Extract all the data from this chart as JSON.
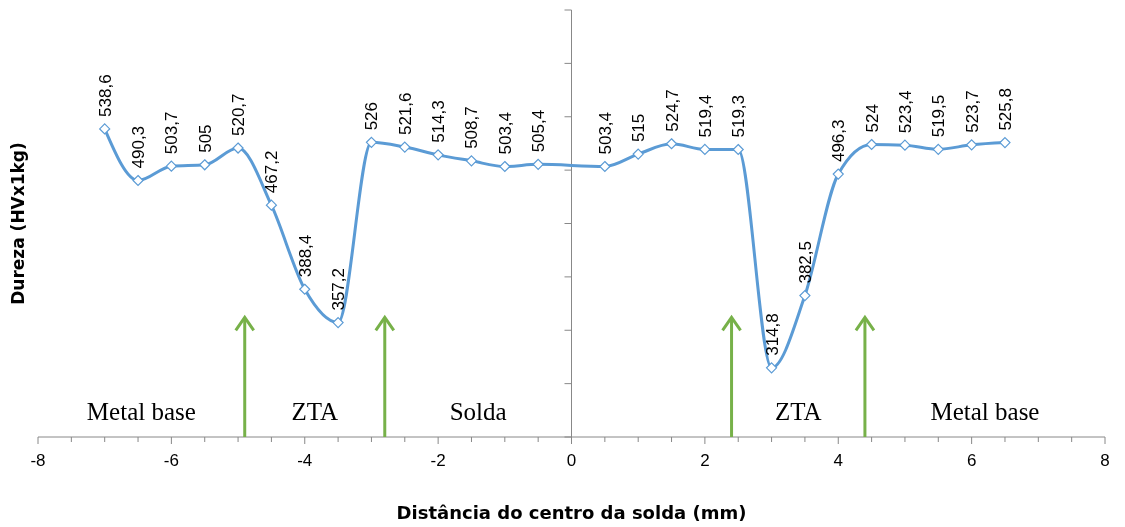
{
  "chart_data": {
    "type": "line",
    "xlabel": "Distância do centro da solda (mm)",
    "ylabel": "Dureza (HVx1kg)",
    "xlim": [
      -8,
      8
    ],
    "xticks": [
      -8,
      {
        "value": -7.5,
        "label": null
      },
      {
        "value": -7,
        "label": null
      },
      {
        "value": -6.5,
        "label": null
      },
      -6,
      {
        "value": -5.5,
        "label": null
      },
      {
        "value": -5,
        "label": null
      },
      {
        "value": -4.5,
        "label": null
      },
      -4,
      {
        "value": -3.5,
        "label": null
      },
      {
        "value": -3,
        "label": null
      },
      {
        "value": -2.5,
        "label": null
      },
      -2,
      {
        "value": -1.5,
        "label": null
      },
      {
        "value": -1,
        "label": null
      },
      {
        "value": -0.5,
        "label": null
      },
      0,
      {
        "value": 0.5,
        "label": null
      },
      {
        "value": 1,
        "label": null
      },
      {
        "value": 1.5,
        "label": null
      },
      2,
      {
        "value": 2.5,
        "label": null
      },
      {
        "value": 3,
        "label": null
      },
      {
        "value": 3.5,
        "label": null
      },
      4,
      {
        "value": 4.5,
        "label": null
      },
      {
        "value": 5,
        "label": null
      },
      {
        "value": 5.5,
        "label": null
      },
      6,
      {
        "value": 6.5,
        "label": null
      },
      {
        "value": 7,
        "label": null
      },
      {
        "value": 7.5,
        "label": null
      },
      8
    ],
    "ylim": [
      250,
      650
    ],
    "yticks": [
      {
        "value": 250,
        "label": null
      },
      {
        "value": 300,
        "label": null
      },
      {
        "value": 350,
        "label": null
      },
      {
        "value": 400,
        "label": null
      },
      {
        "value": 450,
        "label": null
      },
      {
        "value": 500,
        "label": null
      },
      {
        "value": 550,
        "label": null
      },
      {
        "value": 600,
        "label": null
      },
      {
        "value": 650,
        "label": null
      }
    ],
    "tick_labels": "x",
    "marker": "diamond",
    "line_style": "solid",
    "series": [
      {
        "color": "#5b9bd5",
        "x": [
          -7,
          -6.5,
          -6,
          -5.5,
          -5,
          -4.5,
          -4,
          -3.5,
          -3,
          -2.5,
          -2,
          -1.5,
          -1,
          -0.5,
          0.5,
          1,
          1.5,
          2,
          2.5,
          3,
          3.5,
          4,
          4.5,
          5,
          5.5,
          6,
          6.5
        ],
        "values": [
          538.6,
          490.3,
          503.7,
          505,
          520.7,
          467.2,
          388.4,
          357.2,
          526,
          521.6,
          514.3,
          508.7,
          503.4,
          505.4,
          503.4,
          515,
          524.7,
          519.4,
          519.3,
          314.8,
          382.5,
          496.3,
          524,
          523.4,
          519.5,
          523.7,
          525.8
        ],
        "value_labels": [
          "538,6",
          "490,3",
          "503,7",
          "505",
          "520,7",
          "467,2",
          "388,4",
          "357,2",
          "526",
          "521,6",
          "514,3",
          "508,7",
          "503,4",
          "505,4",
          "503,4",
          "515",
          "524,7",
          "519,4",
          "519,3",
          "314,8",
          "382,5",
          "496,3",
          "524",
          "523,4",
          "519,5",
          "523,7",
          "525,8"
        ]
      }
    ],
    "ref_lines": [
      {
        "axis": "x",
        "value": -4.9,
        "color": "#77b149"
      },
      {
        "axis": "x",
        "value": -2.8,
        "color": "#77b149"
      },
      {
        "axis": "x",
        "value": 2.4,
        "color": "#77b149"
      },
      {
        "axis": "x",
        "value": 4.4,
        "color": "#77b149"
      }
    ],
    "annotations": [
      "Metal base",
      "ZTA",
      "Solda",
      "ZTA",
      "Metal base"
    ]
  }
}
